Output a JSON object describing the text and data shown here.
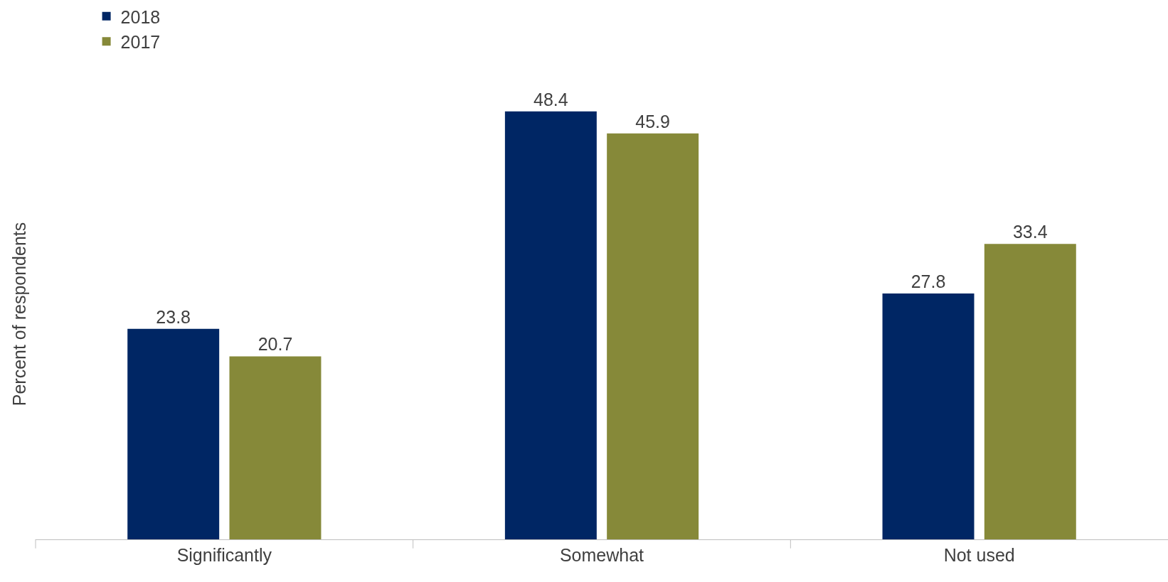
{
  "chart_data": {
    "type": "bar",
    "ylabel": "Percent of respondents",
    "categories": [
      "Significantly",
      "Somewhat",
      "Not used"
    ],
    "series": [
      {
        "name": "2018",
        "color": "#002664",
        "values": [
          23.8,
          48.4,
          27.8
        ]
      },
      {
        "name": "2017",
        "color": "#868939",
        "values": [
          20.7,
          45.9,
          33.4
        ]
      }
    ],
    "data_labels": true,
    "legend": "top left",
    "grid": false
  }
}
